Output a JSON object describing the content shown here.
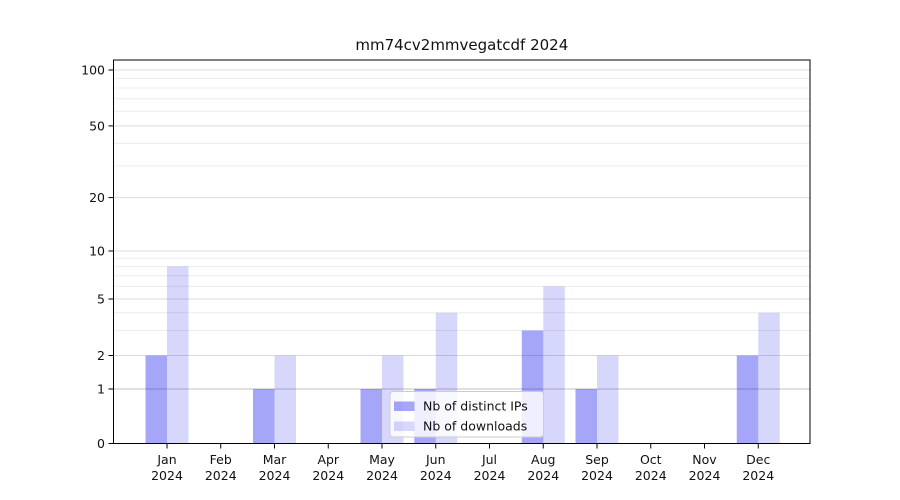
{
  "chart_data": {
    "type": "bar",
    "title": "mm74cv2mmvegatcdf 2024",
    "year": "2024",
    "categories": [
      "Jan",
      "Feb",
      "Mar",
      "Apr",
      "May",
      "Jun",
      "Jul",
      "Aug",
      "Sep",
      "Oct",
      "Nov",
      "Dec"
    ],
    "series": [
      {
        "name": "Nb of distinct IPs",
        "color": "rgba(0,0,235,0.35)",
        "values": [
          2,
          0,
          1,
          0,
          1,
          1,
          0,
          3,
          1,
          0,
          0,
          2
        ]
      },
      {
        "name": "Nb of downloads",
        "color": "rgba(0,0,235,0.155)",
        "values": [
          8,
          0,
          2,
          0,
          2,
          4,
          0,
          6,
          2,
          0,
          0,
          4
        ]
      }
    ],
    "yticks": [
      0,
      1,
      2,
      5,
      10,
      20,
      50,
      100
    ],
    "y_minor_gridlines": [
      3,
      4,
      6,
      7,
      8,
      9,
      30,
      40,
      60,
      70,
      80,
      90
    ],
    "ylim": [
      0,
      100
    ],
    "yscale": "log-like",
    "grid": true,
    "legend_position": "lower center",
    "colors": {
      "grid_major": "#dbdbdb",
      "grid_minor": "#ececec",
      "grid_baseline_one": "#c2c2c2",
      "spine": "#000000",
      "legend_border": "#cccccc"
    }
  }
}
